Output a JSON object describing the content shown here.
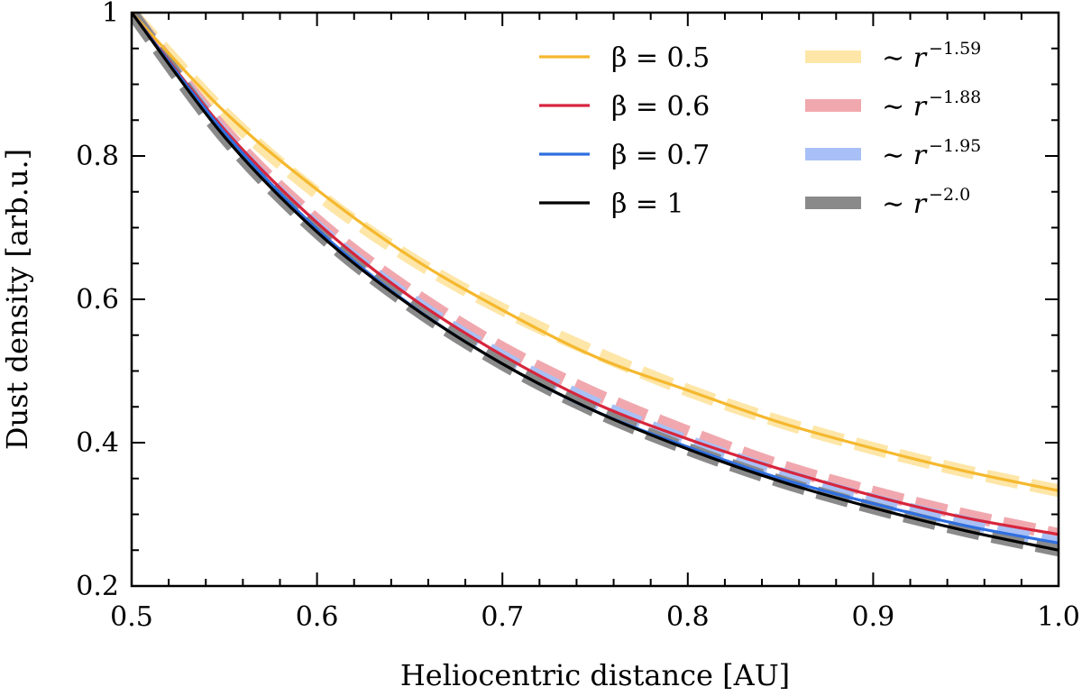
{
  "chart_data": {
    "type": "line",
    "title": "",
    "xlabel": "Heliocentric distance [AU]",
    "ylabel": "Dust density [arb.u.]",
    "xlim": [
      0.5,
      1.0
    ],
    "ylim": [
      0.2,
      1.0
    ],
    "xticks": [
      0.5,
      0.6,
      0.7,
      0.8,
      0.9,
      1.0
    ],
    "xtick_labels": [
      "0.5",
      "0.6",
      "0.7",
      "0.8",
      "0.9",
      "1.0"
    ],
    "yticks": [
      0.2,
      0.4,
      0.6,
      0.8,
      1.0
    ],
    "ytick_labels": [
      "0.2",
      "0.4",
      "0.6",
      "0.8",
      "1"
    ],
    "grid": false,
    "legend_position": "top-right",
    "x": [
      0.5,
      0.55,
      0.6,
      0.65,
      0.7,
      0.75,
      0.8,
      0.85,
      0.9,
      0.95,
      1.0
    ],
    "series": [
      {
        "name": "β = 0.5",
        "style": "solid",
        "color": "#f5b82e",
        "values": [
          1.0,
          0.862,
          0.753,
          0.66,
          0.585,
          0.52,
          0.473,
          0.428,
          0.392,
          0.36,
          0.333
        ]
      },
      {
        "name": "β = 0.6",
        "style": "solid",
        "color": "#d7263d",
        "values": [
          1.0,
          0.837,
          0.707,
          0.604,
          0.522,
          0.455,
          0.405,
          0.363,
          0.326,
          0.295,
          0.272
        ]
      },
      {
        "name": "β = 0.7",
        "style": "solid",
        "color": "#2f6fe0",
        "values": [
          1.0,
          0.833,
          0.698,
          0.593,
          0.51,
          0.444,
          0.394,
          0.35,
          0.315,
          0.284,
          0.26
        ]
      },
      {
        "name": "β = 1",
        "style": "solid",
        "color": "#000000",
        "values": [
          1.0,
          0.827,
          0.694,
          0.592,
          0.51,
          0.444,
          0.391,
          0.346,
          0.309,
          0.277,
          0.25
        ]
      },
      {
        "name": "~ r^-1.59",
        "label_base": "∼ ",
        "label_var": "r",
        "label_exp": "−1.59",
        "style": "dashed-wide",
        "color": "#fde6a8",
        "values": [
          1.0,
          0.86,
          0.748,
          0.658,
          0.586,
          0.526,
          0.473,
          0.429,
          0.392,
          0.36,
          0.333
        ]
      },
      {
        "name": "~ r^-1.88",
        "label_base": "∼ ",
        "label_var": "r",
        "label_exp": "−1.88",
        "style": "dashed-wide",
        "color": "#f0a8ae",
        "values": [
          1.0,
          0.836,
          0.71,
          0.612,
          0.532,
          0.468,
          0.415,
          0.368,
          0.331,
          0.299,
          0.272
        ]
      },
      {
        "name": "~ r^-1.95",
        "label_base": "∼ ",
        "label_var": "r",
        "label_exp": "−1.95",
        "style": "dashed-wide",
        "color": "#a8c0f5",
        "values": [
          1.0,
          0.829,
          0.701,
          0.601,
          0.52,
          0.455,
          0.402,
          0.357,
          0.32,
          0.289,
          0.26
        ]
      },
      {
        "name": "~ r^-2.0",
        "label_base": "∼ ",
        "label_var": "r",
        "label_exp": "−2.0",
        "style": "dashed-wide",
        "color": "#8a8a8a",
        "values": [
          1.0,
          0.826,
          0.694,
          0.592,
          0.51,
          0.444,
          0.391,
          0.346,
          0.309,
          0.277,
          0.25
        ]
      }
    ]
  }
}
